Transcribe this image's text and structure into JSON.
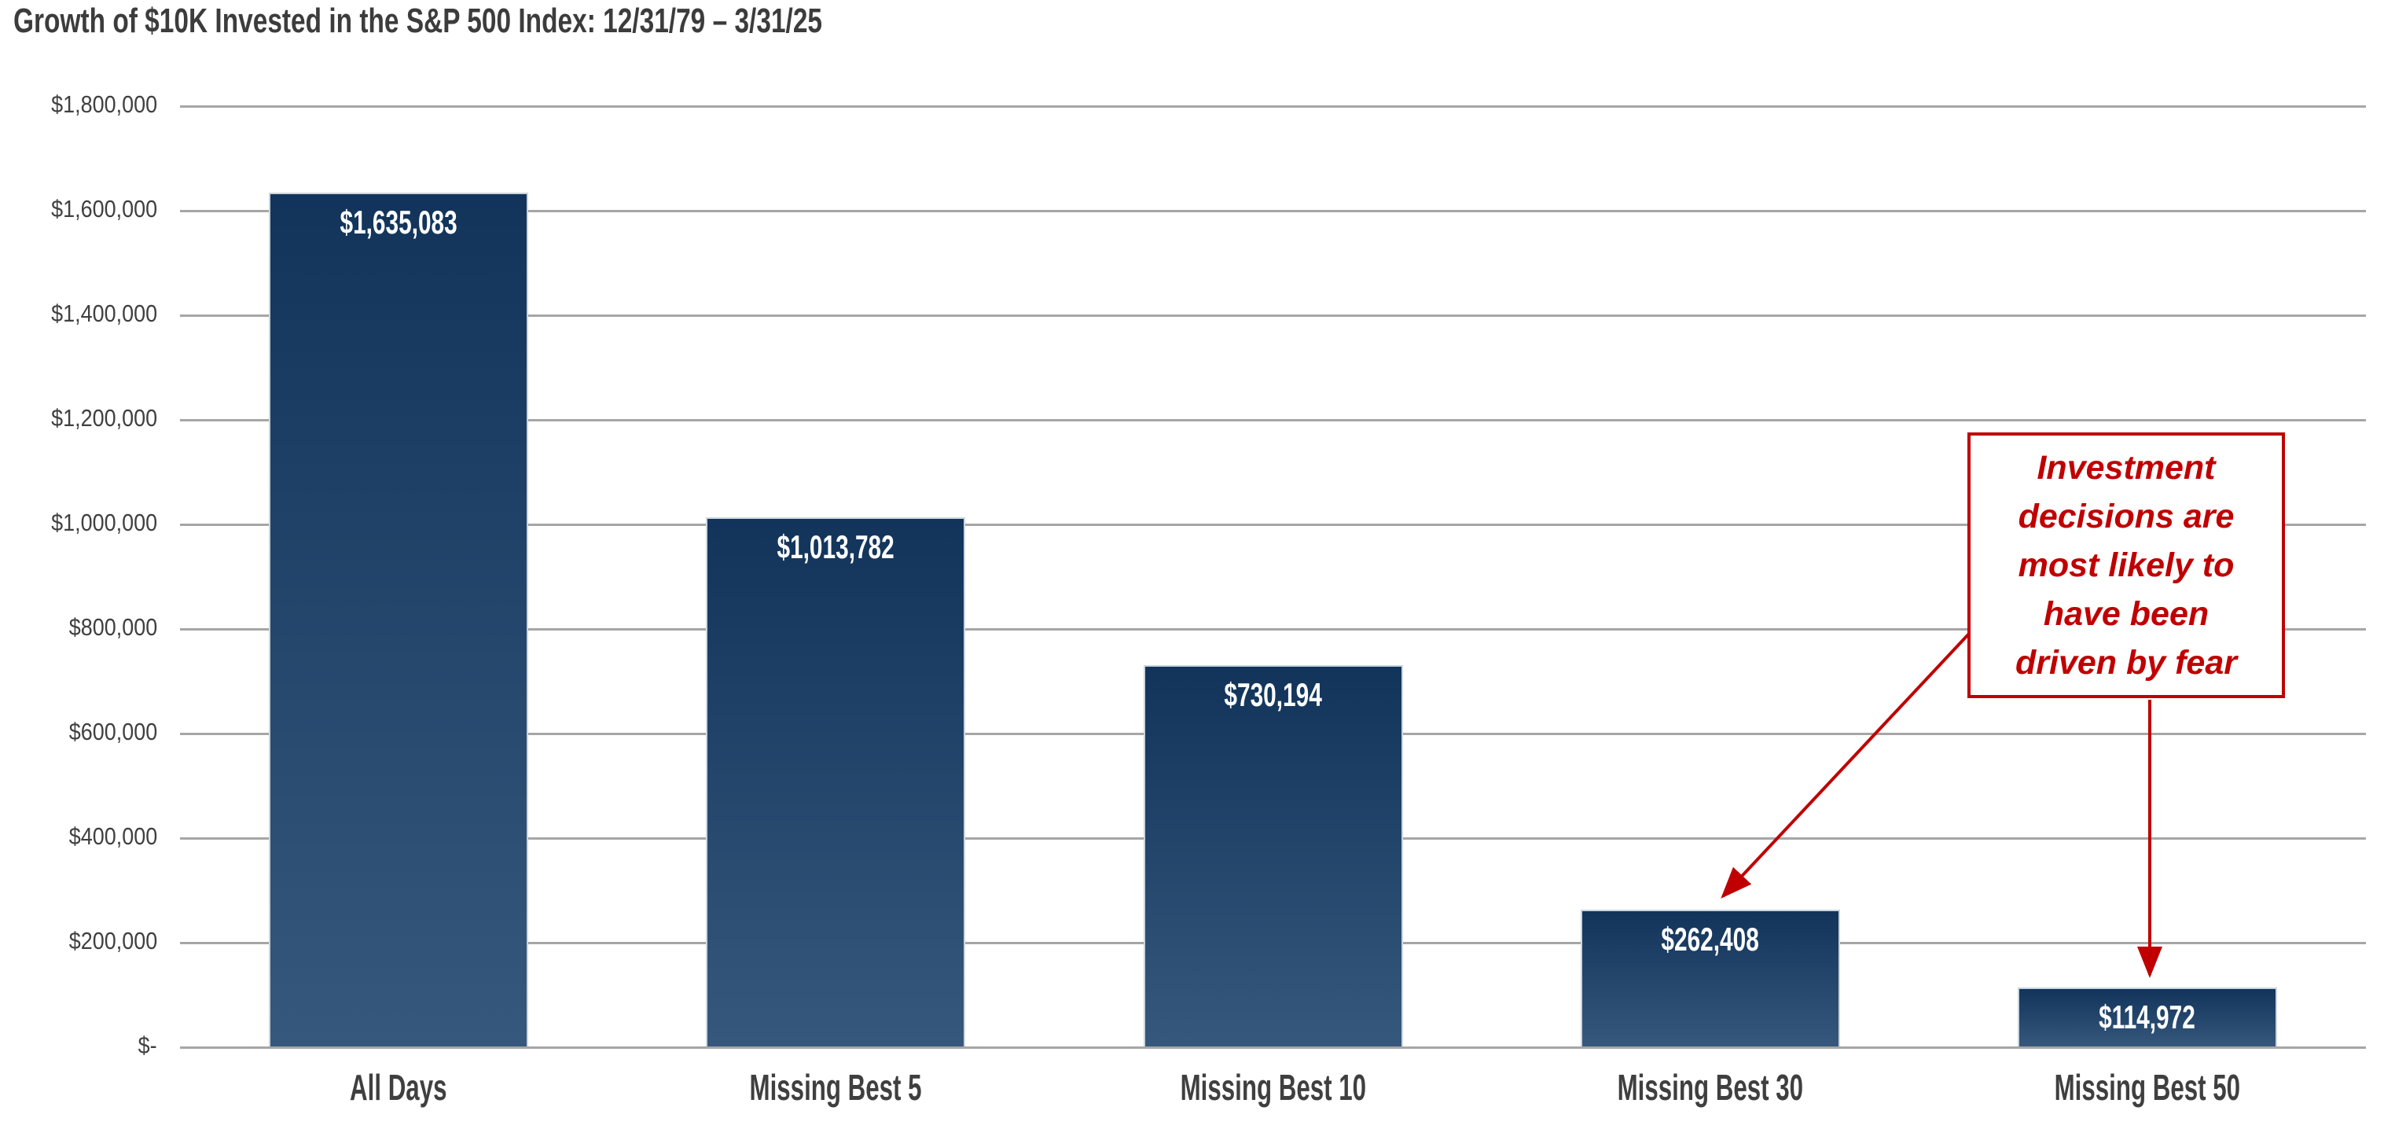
{
  "title": "Growth of $10K Invested in the S&P 500 Index: 12/31/79 – 3/31/25",
  "colors": {
    "bar_gradient_top": "#12345b",
    "bar_gradient_bottom": "#36587c",
    "bar_outline": "#ccd4dc",
    "gridline": "#a6a6a6",
    "title_text": "#3c3c3c",
    "axis_text": "#404040",
    "value_label_text": "#ffffff",
    "annotation_red": "#c00000"
  },
  "annotation": {
    "text": "Investment decisions are most likely to have been driven by fear",
    "lines": [
      "Investment",
      "decisions are",
      "most likely to",
      "have been",
      "driven by fear"
    ],
    "arrow_targets": [
      "Missing Best 30",
      "Missing Best 50"
    ]
  },
  "chart_data": {
    "type": "bar",
    "title": "Growth of $10K Invested in the S&P 500 Index: 12/31/79 – 3/31/25",
    "categories": [
      "All Days",
      "Missing Best 5",
      "Missing Best 10",
      "Missing Best 30",
      "Missing Best 50"
    ],
    "values": [
      1635083,
      1013782,
      730194,
      262408,
      114972
    ],
    "value_labels": [
      "$1,635,083",
      "$1,013,782",
      "$730,194",
      "$262,408",
      "$114,972"
    ],
    "xlabel": "",
    "ylabel": "",
    "ylim": [
      0,
      1800000
    ],
    "ytick_step": 200000,
    "ytick_labels": [
      "$-",
      "$200,000",
      "$400,000",
      "$600,000",
      "$800,000",
      "$1,000,000",
      "$1,200,000",
      "$1,400,000",
      "$1,600,000",
      "$1,800,000"
    ],
    "grid": "horizontal-only",
    "legend": "none",
    "annotation_values": {
      "Missing Best 30": 262408,
      "Missing Best 50": 114972
    }
  }
}
